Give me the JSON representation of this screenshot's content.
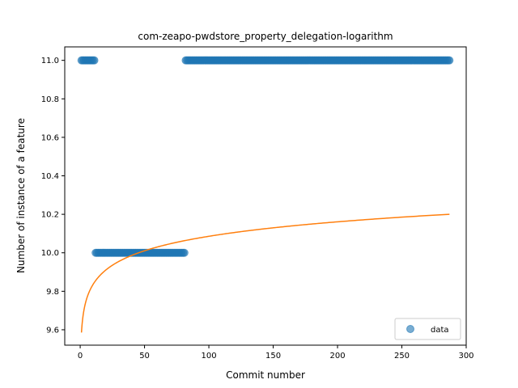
{
  "chart_data": {
    "type": "scatter",
    "title": "com-zeapo-pwdstore_property_delegation-logarithm",
    "xlabel": "Commit number",
    "ylabel": "Number of instance of a feature",
    "xlim": [
      -12,
      300
    ],
    "ylim": [
      9.52,
      11.07
    ],
    "x_ticks": [
      0,
      50,
      100,
      150,
      200,
      250,
      300
    ],
    "y_ticks": [
      9.6,
      9.8,
      10.0,
      10.2,
      10.4,
      10.6,
      10.8,
      11.0
    ],
    "y_tick_labels": [
      "9.6",
      "9.8",
      "10.0",
      "10.2",
      "10.4",
      "10.6",
      "10.8",
      "11.0"
    ],
    "grid": false,
    "legend": {
      "position": "lower-right",
      "entries": [
        "data"
      ]
    },
    "series": [
      {
        "name": "data",
        "kind": "scatter",
        "color": "#1f77b4",
        "segments": [
          {
            "x_start": 1,
            "x_end": 11,
            "y": 11.0
          },
          {
            "x_start": 12,
            "x_end": 81,
            "y": 10.0
          },
          {
            "x_start": 82,
            "x_end": 287,
            "y": 11.0
          }
        ]
      },
      {
        "name": "fit",
        "kind": "line",
        "color": "#ff7f0e",
        "model": "logarithmic",
        "a": 9.5857,
        "b": 0.25,
        "x_range": [
          1,
          287
        ]
      }
    ]
  }
}
